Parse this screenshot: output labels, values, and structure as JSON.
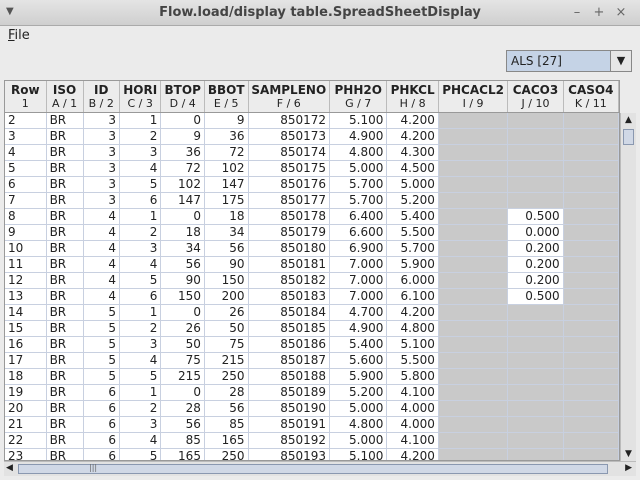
{
  "window": {
    "title": "Flow.load/display table.SpreadSheetDisplay",
    "menu_glyph": "▼",
    "minimize": "–",
    "maximize": "+",
    "close": "×"
  },
  "menu": {
    "file_mnemonic": "F",
    "file_rest": "ile"
  },
  "selector": {
    "value": "ALS [27]",
    "arrow": "▼"
  },
  "table": {
    "columns": [
      {
        "name": "Row",
        "sub": "1"
      },
      {
        "name": "ISO",
        "sub": "A / 1"
      },
      {
        "name": "ID",
        "sub": "B / 2"
      },
      {
        "name": "HORI",
        "sub": "C / 3"
      },
      {
        "name": "BTOP",
        "sub": "D / 4"
      },
      {
        "name": "BBOT",
        "sub": "E / 5"
      },
      {
        "name": "SAMPLENO",
        "sub": "F / 6"
      },
      {
        "name": "PHH2O",
        "sub": "G / 7"
      },
      {
        "name": "PHKCL",
        "sub": "H / 8"
      },
      {
        "name": "PHCACL2",
        "sub": "I / 9"
      },
      {
        "name": "CACO3",
        "sub": "J / 10"
      },
      {
        "name": "CASO4",
        "sub": "K / 11"
      }
    ],
    "rows": [
      [
        "2",
        "BR",
        "3",
        "1",
        "0",
        "9",
        "850172",
        "5.100",
        "4.200",
        "",
        "",
        ""
      ],
      [
        "3",
        "BR",
        "3",
        "2",
        "9",
        "36",
        "850173",
        "4.900",
        "4.200",
        "",
        "",
        ""
      ],
      [
        "4",
        "BR",
        "3",
        "3",
        "36",
        "72",
        "850174",
        "4.800",
        "4.300",
        "",
        "",
        ""
      ],
      [
        "5",
        "BR",
        "3",
        "4",
        "72",
        "102",
        "850175",
        "5.000",
        "4.500",
        "",
        "",
        ""
      ],
      [
        "6",
        "BR",
        "3",
        "5",
        "102",
        "147",
        "850176",
        "5.700",
        "5.000",
        "",
        "",
        ""
      ],
      [
        "7",
        "BR",
        "3",
        "6",
        "147",
        "175",
        "850177",
        "5.700",
        "5.200",
        "",
        "",
        ""
      ],
      [
        "8",
        "BR",
        "4",
        "1",
        "0",
        "18",
        "850178",
        "6.400",
        "5.400",
        "",
        "0.500",
        ""
      ],
      [
        "9",
        "BR",
        "4",
        "2",
        "18",
        "34",
        "850179",
        "6.600",
        "5.500",
        "",
        "0.000",
        ""
      ],
      [
        "10",
        "BR",
        "4",
        "3",
        "34",
        "56",
        "850180",
        "6.900",
        "5.700",
        "",
        "0.200",
        ""
      ],
      [
        "11",
        "BR",
        "4",
        "4",
        "56",
        "90",
        "850181",
        "7.000",
        "5.900",
        "",
        "0.200",
        ""
      ],
      [
        "12",
        "BR",
        "4",
        "5",
        "90",
        "150",
        "850182",
        "7.000",
        "6.000",
        "",
        "0.200",
        ""
      ],
      [
        "13",
        "BR",
        "4",
        "6",
        "150",
        "200",
        "850183",
        "7.000",
        "6.100",
        "",
        "0.500",
        ""
      ],
      [
        "14",
        "BR",
        "5",
        "1",
        "0",
        "26",
        "850184",
        "4.700",
        "4.200",
        "",
        "",
        ""
      ],
      [
        "15",
        "BR",
        "5",
        "2",
        "26",
        "50",
        "850185",
        "4.900",
        "4.800",
        "",
        "",
        ""
      ],
      [
        "16",
        "BR",
        "5",
        "3",
        "50",
        "75",
        "850186",
        "5.400",
        "5.100",
        "",
        "",
        ""
      ],
      [
        "17",
        "BR",
        "5",
        "4",
        "75",
        "215",
        "850187",
        "5.600",
        "5.500",
        "",
        "",
        ""
      ],
      [
        "18",
        "BR",
        "5",
        "5",
        "215",
        "250",
        "850188",
        "5.900",
        "5.800",
        "",
        "",
        ""
      ],
      [
        "19",
        "BR",
        "6",
        "1",
        "0",
        "28",
        "850189",
        "5.200",
        "4.100",
        "",
        "",
        ""
      ],
      [
        "20",
        "BR",
        "6",
        "2",
        "28",
        "56",
        "850190",
        "5.000",
        "4.000",
        "",
        "",
        ""
      ],
      [
        "21",
        "BR",
        "6",
        "3",
        "56",
        "85",
        "850191",
        "4.800",
        "4.000",
        "",
        "",
        ""
      ],
      [
        "22",
        "BR",
        "6",
        "4",
        "85",
        "165",
        "850192",
        "5.000",
        "4.100",
        "",
        "",
        ""
      ],
      [
        "23",
        "BR",
        "6",
        "5",
        "165",
        "250",
        "850193",
        "5.100",
        "4.200",
        "",
        "",
        ""
      ]
    ]
  },
  "scrollbars": {
    "up": "▲",
    "down": "▼",
    "left": "◀",
    "right": "▶",
    "grip": "|||"
  }
}
